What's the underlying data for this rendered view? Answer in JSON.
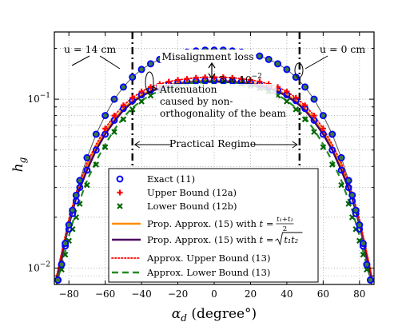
{
  "chart_data": {
    "type": "line",
    "xlabel": "α_d (degree°)",
    "xlabel_main": "α",
    "xlabel_sub": "d",
    "xlabel_rest": " (degree°)",
    "ylabel": "h_g",
    "ylabel_main": "h",
    "ylabel_sub": "g",
    "xlim": [
      -88,
      88
    ],
    "ylim": [
      0.008,
      0.25
    ],
    "yscale": "log",
    "grid": true,
    "x_ticks": [
      -80,
      -60,
      -40,
      -20,
      0,
      20,
      40,
      60,
      80
    ],
    "y_ticks": [
      {
        "value": 0.1,
        "base": "10",
        "exp": "−1"
      },
      {
        "value": 0.01,
        "base": "10",
        "exp": "−2"
      }
    ],
    "legend_position": "lower-center",
    "regime_bounds": [
      -45,
      47
    ],
    "annotations": {
      "u14": "u = 14 cm",
      "u0": "u = 0 cm",
      "misalignment": "Misalignment loss",
      "three": "3 × 10",
      "three_exp": "−2",
      "attenuation": [
        "Attenuation",
        "caused by non-",
        "orthogonality of the beam"
      ],
      "practical": "Practical Regime"
    },
    "series": [
      {
        "name": "Exact (11)",
        "legend_math": "",
        "marker": "circle",
        "color": "#0000ff",
        "curve_u0": [
          [
            -86,
            0.0085
          ],
          [
            -84,
            0.0105
          ],
          [
            -82,
            0.0135
          ],
          [
            -80,
            0.017
          ],
          [
            -78,
            0.021
          ],
          [
            -76,
            0.025
          ],
          [
            -74,
            0.03
          ],
          [
            -70,
            0.038
          ],
          [
            -65,
            0.05
          ],
          [
            -60,
            0.062
          ],
          [
            -55,
            0.075
          ],
          [
            -50,
            0.088
          ],
          [
            -45,
            0.098
          ],
          [
            -40,
            0.106
          ],
          [
            -35,
            0.113
          ],
          [
            -30,
            0.118
          ],
          [
            -25,
            0.122
          ],
          [
            -20,
            0.125
          ],
          [
            -15,
            0.127
          ],
          [
            -10,
            0.128
          ],
          [
            -5,
            0.129
          ],
          [
            0,
            0.129
          ],
          [
            5,
            0.129
          ],
          [
            10,
            0.128
          ],
          [
            15,
            0.127
          ],
          [
            20,
            0.125
          ],
          [
            25,
            0.122
          ],
          [
            30,
            0.118
          ],
          [
            35,
            0.113
          ],
          [
            40,
            0.106
          ],
          [
            45,
            0.098
          ],
          [
            50,
            0.088
          ],
          [
            55,
            0.075
          ],
          [
            60,
            0.062
          ],
          [
            65,
            0.05
          ],
          [
            70,
            0.038
          ],
          [
            74,
            0.03
          ],
          [
            76,
            0.025
          ],
          [
            78,
            0.021
          ],
          [
            80,
            0.017
          ],
          [
            82,
            0.0135
          ],
          [
            84,
            0.0105
          ],
          [
            86,
            0.0085
          ]
        ],
        "curve_u14": [
          [
            -86,
            0.0085
          ],
          [
            -84,
            0.0105
          ],
          [
            -82,
            0.014
          ],
          [
            -80,
            0.018
          ],
          [
            -78,
            0.022
          ],
          [
            -76,
            0.027
          ],
          [
            -74,
            0.033
          ],
          [
            -70,
            0.045
          ],
          [
            -65,
            0.062
          ],
          [
            -60,
            0.08
          ],
          [
            -55,
            0.1
          ],
          [
            -50,
            0.118
          ],
          [
            -45,
            0.135
          ],
          [
            -40,
            0.15
          ],
          [
            -35,
            0.162
          ],
          [
            -30,
            0.172
          ],
          [
            -25,
            0.18
          ],
          [
            -20,
            0.186
          ],
          [
            -15,
            0.19
          ],
          [
            -10,
            0.193
          ],
          [
            -5,
            0.195
          ],
          [
            0,
            0.195
          ],
          [
            5,
            0.195
          ],
          [
            10,
            0.193
          ],
          [
            15,
            0.19
          ],
          [
            20,
            0.186
          ],
          [
            25,
            0.18
          ],
          [
            30,
            0.172
          ],
          [
            35,
            0.162
          ],
          [
            40,
            0.15
          ],
          [
            45,
            0.135
          ],
          [
            50,
            0.118
          ],
          [
            55,
            0.1
          ],
          [
            60,
            0.08
          ],
          [
            65,
            0.062
          ],
          [
            70,
            0.045
          ],
          [
            74,
            0.033
          ],
          [
            76,
            0.027
          ],
          [
            78,
            0.022
          ],
          [
            80,
            0.018
          ],
          [
            82,
            0.014
          ],
          [
            84,
            0.0105
          ],
          [
            86,
            0.0085
          ]
        ]
      },
      {
        "name": "Upper Bound (12a)",
        "legend_math": "",
        "marker": "plus",
        "color": "#ff0000",
        "points": [
          [
            -60,
            0.067
          ],
          [
            -55,
            0.08
          ],
          [
            -50,
            0.092
          ],
          [
            -45,
            0.102
          ],
          [
            -40,
            0.111
          ],
          [
            -35,
            0.118
          ],
          [
            -30,
            0.123
          ],
          [
            -25,
            0.127
          ],
          [
            -20,
            0.13
          ],
          [
            -15,
            0.132
          ],
          [
            -10,
            0.134
          ],
          [
            -5,
            0.135
          ],
          [
            0,
            0.135
          ],
          [
            5,
            0.135
          ],
          [
            10,
            0.134
          ],
          [
            15,
            0.132
          ],
          [
            20,
            0.13
          ],
          [
            25,
            0.127
          ],
          [
            30,
            0.123
          ],
          [
            35,
            0.118
          ],
          [
            40,
            0.111
          ],
          [
            45,
            0.102
          ],
          [
            50,
            0.092
          ],
          [
            55,
            0.08
          ],
          [
            60,
            0.067
          ]
        ]
      },
      {
        "name": "Lower Bound (12b)",
        "legend_math": "",
        "marker": "x",
        "color": "#006400",
        "curve_u0": [
          [
            -86,
            0.0085
          ],
          [
            -84,
            0.0098
          ],
          [
            -82,
            0.012
          ],
          [
            -80,
            0.0145
          ],
          [
            -78,
            0.017
          ],
          [
            -76,
            0.02
          ],
          [
            -74,
            0.024
          ],
          [
            -70,
            0.031
          ],
          [
            -65,
            0.041
          ],
          [
            -60,
            0.052
          ],
          [
            -55,
            0.064
          ],
          [
            -50,
            0.076
          ],
          [
            -45,
            0.087
          ],
          [
            -40,
            0.097
          ],
          [
            -35,
            0.105
          ],
          [
            -30,
            0.111
          ],
          [
            -25,
            0.116
          ],
          [
            -20,
            0.12
          ],
          [
            -15,
            0.123
          ],
          [
            -10,
            0.125
          ],
          [
            -5,
            0.126
          ],
          [
            0,
            0.126
          ],
          [
            5,
            0.126
          ],
          [
            10,
            0.125
          ],
          [
            15,
            0.123
          ],
          [
            20,
            0.12
          ],
          [
            25,
            0.116
          ],
          [
            30,
            0.111
          ],
          [
            35,
            0.105
          ],
          [
            40,
            0.097
          ],
          [
            45,
            0.087
          ],
          [
            50,
            0.076
          ],
          [
            55,
            0.064
          ],
          [
            60,
            0.052
          ],
          [
            65,
            0.041
          ],
          [
            70,
            0.031
          ],
          [
            74,
            0.024
          ],
          [
            76,
            0.02
          ],
          [
            78,
            0.017
          ],
          [
            80,
            0.0145
          ],
          [
            82,
            0.012
          ],
          [
            84,
            0.0098
          ],
          [
            86,
            0.0085
          ]
        ]
      },
      {
        "name": "Prop. Approx. (15) with ",
        "legend_math": "frac",
        "line": "solid",
        "color": "#ff8c00",
        "values": [
          [
            -87,
            0.0085
          ],
          [
            -85,
            0.0108
          ],
          [
            -82,
            0.015
          ],
          [
            -80,
            0.019
          ],
          [
            -76,
            0.027
          ],
          [
            -70,
            0.04
          ],
          [
            -65,
            0.052
          ],
          [
            -60,
            0.064
          ],
          [
            -55,
            0.076
          ],
          [
            -50,
            0.088
          ],
          [
            -45,
            0.098
          ],
          [
            -40,
            0.106
          ],
          [
            -35,
            0.113
          ],
          [
            -30,
            0.118
          ],
          [
            -25,
            0.122
          ],
          [
            -20,
            0.125
          ],
          [
            -10,
            0.128
          ],
          [
            0,
            0.129
          ],
          [
            10,
            0.128
          ],
          [
            20,
            0.125
          ],
          [
            25,
            0.122
          ],
          [
            30,
            0.118
          ],
          [
            35,
            0.113
          ],
          [
            40,
            0.106
          ],
          [
            45,
            0.098
          ],
          [
            50,
            0.088
          ],
          [
            55,
            0.076
          ],
          [
            60,
            0.064
          ],
          [
            65,
            0.052
          ],
          [
            70,
            0.04
          ],
          [
            76,
            0.027
          ],
          [
            80,
            0.019
          ],
          [
            82,
            0.015
          ],
          [
            85,
            0.0108
          ],
          [
            87,
            0.0085
          ]
        ]
      },
      {
        "name": "Prop. Approx. (15) with ",
        "legend_math": "sqrt",
        "line": "solid",
        "color": "#4b0060",
        "values": [
          [
            -87,
            0.0083
          ],
          [
            -85,
            0.0104
          ],
          [
            -82,
            0.0145
          ],
          [
            -80,
            0.018
          ],
          [
            -76,
            0.026
          ],
          [
            -70,
            0.038
          ],
          [
            -65,
            0.05
          ],
          [
            -60,
            0.062
          ],
          [
            -55,
            0.074
          ],
          [
            -50,
            0.086
          ],
          [
            -45,
            0.096
          ],
          [
            -40,
            0.104
          ],
          [
            -35,
            0.111
          ],
          [
            -30,
            0.116
          ],
          [
            -25,
            0.12
          ],
          [
            -20,
            0.123
          ],
          [
            -10,
            0.126
          ],
          [
            0,
            0.127
          ],
          [
            10,
            0.126
          ],
          [
            20,
            0.123
          ],
          [
            25,
            0.12
          ],
          [
            30,
            0.116
          ],
          [
            35,
            0.111
          ],
          [
            40,
            0.104
          ],
          [
            45,
            0.096
          ],
          [
            50,
            0.086
          ],
          [
            55,
            0.074
          ],
          [
            60,
            0.062
          ],
          [
            65,
            0.05
          ],
          [
            70,
            0.038
          ],
          [
            76,
            0.026
          ],
          [
            80,
            0.018
          ],
          [
            82,
            0.0145
          ],
          [
            85,
            0.0104
          ],
          [
            87,
            0.0083
          ]
        ]
      },
      {
        "name": "Approx. Upper Bound (13)",
        "legend_math": "",
        "line": "dotted",
        "color": "#ff0000",
        "values": [
          [
            -87,
            0.0087
          ],
          [
            -85,
            0.011
          ],
          [
            -82,
            0.0155
          ],
          [
            -80,
            0.0195
          ],
          [
            -76,
            0.028
          ],
          [
            -70,
            0.042
          ],
          [
            -65,
            0.054
          ],
          [
            -60,
            0.067
          ],
          [
            -55,
            0.08
          ],
          [
            -50,
            0.092
          ],
          [
            -45,
            0.102
          ],
          [
            -40,
            0.111
          ],
          [
            -35,
            0.118
          ],
          [
            -30,
            0.123
          ],
          [
            -25,
            0.127
          ],
          [
            -20,
            0.13
          ],
          [
            -10,
            0.134
          ],
          [
            0,
            0.135
          ],
          [
            10,
            0.134
          ],
          [
            20,
            0.13
          ],
          [
            25,
            0.127
          ],
          [
            30,
            0.123
          ],
          [
            35,
            0.118
          ],
          [
            40,
            0.111
          ],
          [
            45,
            0.102
          ],
          [
            50,
            0.092
          ],
          [
            55,
            0.08
          ],
          [
            60,
            0.067
          ],
          [
            65,
            0.054
          ],
          [
            70,
            0.042
          ],
          [
            76,
            0.028
          ],
          [
            80,
            0.0195
          ],
          [
            82,
            0.0155
          ],
          [
            85,
            0.011
          ],
          [
            87,
            0.0087
          ]
        ]
      },
      {
        "name": "Approx. Lower Bound (13)",
        "legend_math": "",
        "line": "dashed",
        "color": "#228b22",
        "values": [
          [
            -87,
            0.0078
          ],
          [
            -85,
            0.0095
          ],
          [
            -82,
            0.0125
          ],
          [
            -80,
            0.0155
          ],
          [
            -76,
            0.022
          ],
          [
            -70,
            0.033
          ],
          [
            -65,
            0.043
          ],
          [
            -60,
            0.054
          ],
          [
            -55,
            0.066
          ],
          [
            -50,
            0.078
          ],
          [
            -45,
            0.089
          ],
          [
            -40,
            0.098
          ],
          [
            -35,
            0.106
          ],
          [
            -30,
            0.112
          ],
          [
            -25,
            0.117
          ],
          [
            -20,
            0.121
          ],
          [
            -10,
            0.125
          ],
          [
            0,
            0.126
          ],
          [
            10,
            0.125
          ],
          [
            20,
            0.121
          ],
          [
            25,
            0.117
          ],
          [
            30,
            0.112
          ],
          [
            35,
            0.106
          ],
          [
            40,
            0.098
          ],
          [
            45,
            0.089
          ],
          [
            50,
            0.078
          ],
          [
            55,
            0.066
          ],
          [
            60,
            0.054
          ],
          [
            65,
            0.043
          ],
          [
            70,
            0.033
          ],
          [
            76,
            0.022
          ],
          [
            80,
            0.0155
          ],
          [
            82,
            0.0125
          ],
          [
            85,
            0.0095
          ],
          [
            87,
            0.0078
          ]
        ]
      }
    ]
  }
}
